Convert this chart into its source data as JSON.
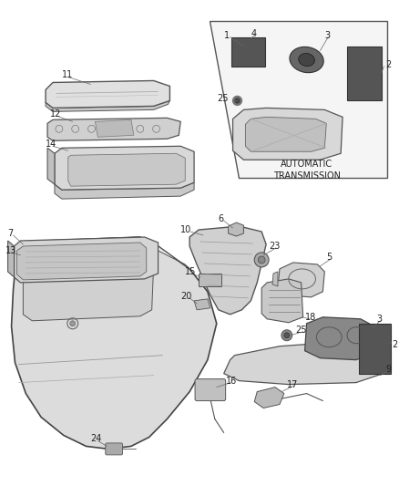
{
  "bg_color": "#ffffff",
  "fig_width": 4.38,
  "fig_height": 5.33,
  "dpi": 100,
  "line_color": "#444444",
  "text_color": "#222222",
  "label_fontsize": 7.0,
  "part_face": "#e8e8e8",
  "part_dark": "#888888",
  "part_mid": "#cccccc"
}
